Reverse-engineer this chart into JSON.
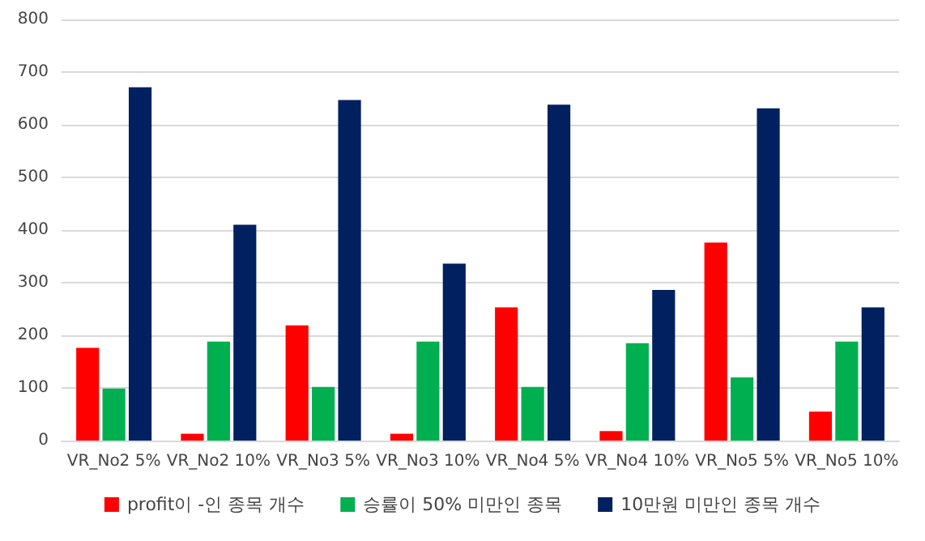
{
  "chart_data": {
    "type": "bar",
    "categories": [
      "VR_No2 5%",
      "VR_No2 10%",
      "VR_No3 5%",
      "VR_No3 10%",
      "VR_No4 5%",
      "VR_No4 10%",
      "VR_No5 5%",
      "VR_No5 10%"
    ],
    "series": [
      {
        "name": "profit이 -인 종목 개수",
        "color": "#ff0000",
        "values": [
          176,
          13,
          219,
          13,
          253,
          18,
          376,
          55
        ]
      },
      {
        "name": "승률이 50% 미만인 종목",
        "color": "#00b050",
        "values": [
          99,
          188,
          102,
          188,
          102,
          185,
          120,
          188
        ]
      },
      {
        "name": "10만원 미만인 종목 개수",
        "color": "#002060",
        "values": [
          671,
          410,
          647,
          336,
          638,
          286,
          631,
          253
        ]
      }
    ],
    "ylim": [
      0,
      800
    ],
    "yticks": [
      0,
      100,
      200,
      300,
      400,
      500,
      600,
      700,
      800
    ],
    "grid": "y",
    "legend": "bottom"
  }
}
